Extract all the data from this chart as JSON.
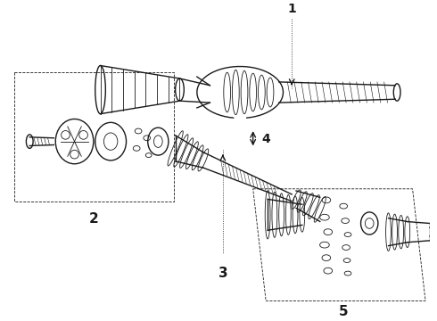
{
  "bg_color": "#ffffff",
  "line_color": "#1a1a1a",
  "fig_width": 4.9,
  "fig_height": 3.6,
  "dpi": 100,
  "label_fontsize": 10,
  "label_fontweight": "bold"
}
